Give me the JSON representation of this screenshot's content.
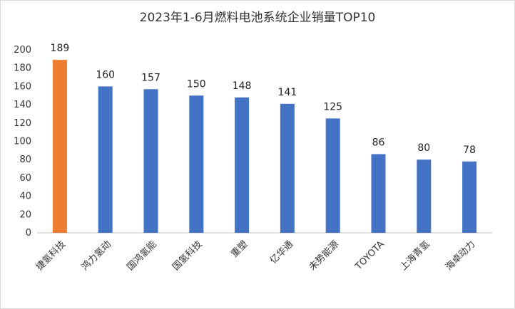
{
  "chart_data": {
    "type": "bar",
    "title": "2023年1-6月燃料电池系统企业销量TOP10",
    "xlabel": "",
    "ylabel": "",
    "categories": [
      "捷氢科技",
      "鸿力氢动",
      "国鸿氢能",
      "国氢科技",
      "重塑",
      "亿华通",
      "未势能源",
      "TOYOTA",
      "上海青氢",
      "海卓动力"
    ],
    "values": [
      189,
      160,
      157,
      150,
      148,
      141,
      125,
      86,
      80,
      78
    ],
    "ylim": [
      0,
      200
    ],
    "yticks": [
      0,
      20,
      40,
      60,
      80,
      100,
      120,
      140,
      160,
      180,
      200
    ],
    "grid": false,
    "legend": "none",
    "highlight_index": 0,
    "colors": {
      "highlight": "#ED7D31",
      "default": "#4472C4",
      "axis": "#BFBFBF"
    }
  }
}
